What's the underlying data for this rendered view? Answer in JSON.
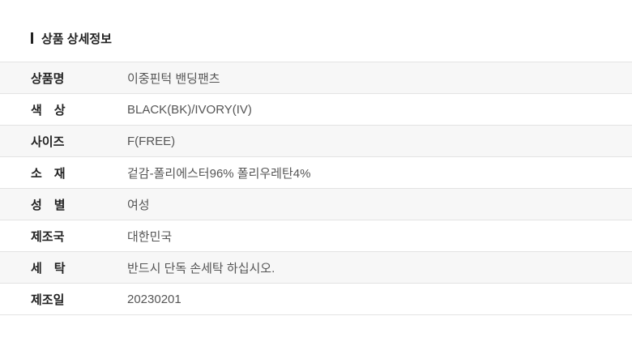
{
  "section_title": "상품 상세정보",
  "rows": [
    {
      "label": "상품명",
      "value": "이중핀턱 밴딩팬츠"
    },
    {
      "label": "색　상",
      "value": "BLACK(BK)/IVORY(IV)"
    },
    {
      "label": "사이즈",
      "value": "F(FREE)"
    },
    {
      "label": "소　재",
      "value": "겉감-폴리에스터96% 폴리우레탄4%"
    },
    {
      "label": "성　별",
      "value": "여성"
    },
    {
      "label": "제조국",
      "value": "대한민국"
    },
    {
      "label": "세　탁",
      "value": "반드시 단독 손세탁 하십시오."
    },
    {
      "label": "제조일",
      "value": "20230201"
    }
  ]
}
